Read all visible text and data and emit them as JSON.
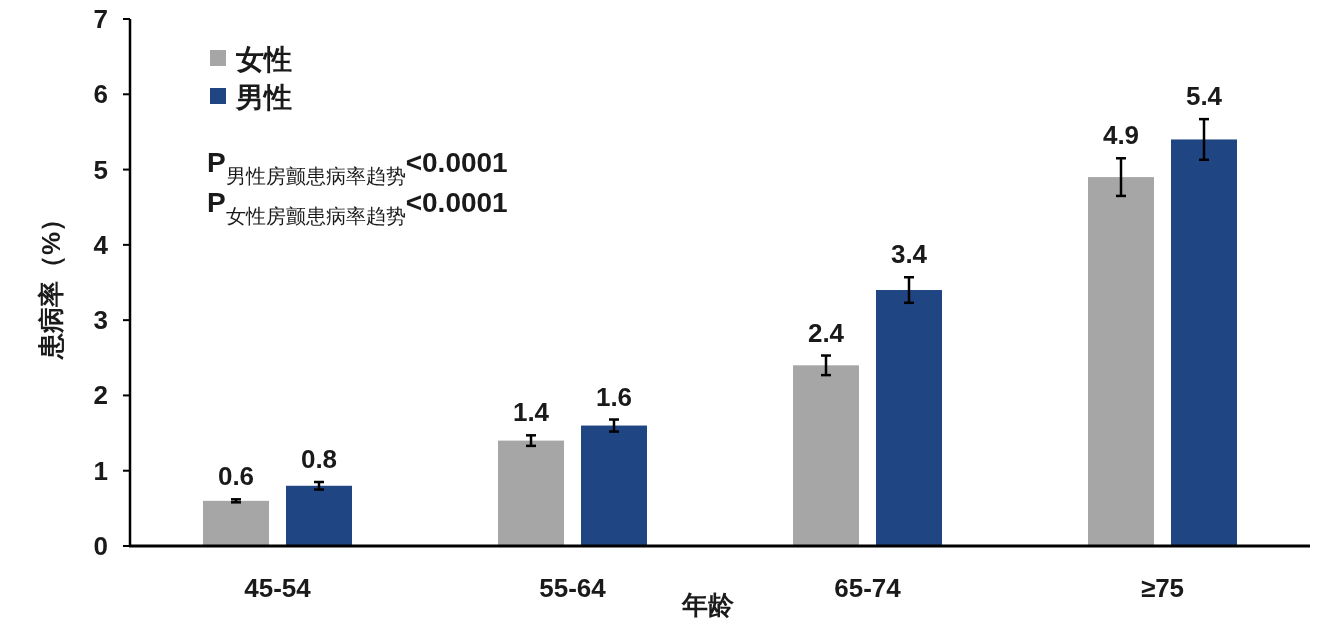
{
  "chart_data": {
    "type": "bar",
    "xlabel": "年龄",
    "ylabel": "患病率（%）",
    "categories": [
      "45-54",
      "55-64",
      "65-74",
      "≥75"
    ],
    "series": [
      {
        "name": "女性",
        "color": "#a6a6a6",
        "values": [
          0.6,
          1.4,
          2.4,
          4.9
        ],
        "errors": [
          0.02,
          0.07,
          0.13,
          0.25
        ]
      },
      {
        "name": "男性",
        "color": "#1f4682",
        "values": [
          0.8,
          1.6,
          3.4,
          5.4
        ],
        "errors": [
          0.05,
          0.08,
          0.17,
          0.27
        ]
      }
    ],
    "ylim": [
      0,
      7
    ],
    "yticks": [
      0,
      1,
      2,
      3,
      4,
      5,
      6,
      7
    ],
    "data_labels": true,
    "legend": "top left",
    "grid": false,
    "annotations": [
      "P$_{男性房颤患病率趋势}$<0.0001",
      "P$_{女性房颤患病率趋势}$<0.0001"
    ]
  }
}
